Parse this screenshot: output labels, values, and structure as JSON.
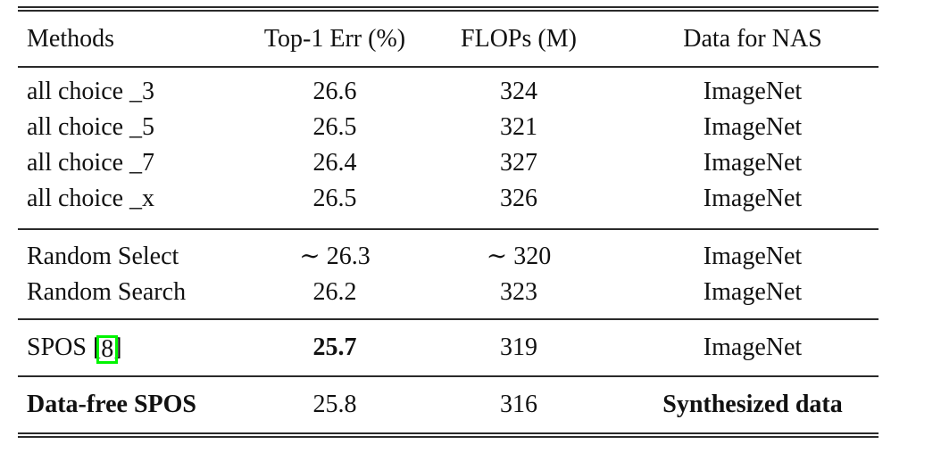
{
  "colors": {
    "text": "#111111",
    "rule": "#2a2a2a",
    "citation_box": "#00f400",
    "background": "#ffffff"
  },
  "table": {
    "columns": [
      "Methods",
      "Top-1 Err (%)",
      "FLOPs (M)",
      "Data for NAS"
    ],
    "groups": [
      {
        "rows": [
          {
            "method": "all choice _3",
            "err": "26.6",
            "flops": "324",
            "data": "ImageNet"
          },
          {
            "method": "all choice _5",
            "err": "26.5",
            "flops": "321",
            "data": "ImageNet"
          },
          {
            "method": "all choice _7",
            "err": "26.4",
            "flops": "327",
            "data": "ImageNet"
          },
          {
            "method": "all choice _x",
            "err": "26.5",
            "flops": "326",
            "data": "ImageNet"
          }
        ]
      },
      {
        "rows": [
          {
            "method": "Random Select",
            "err": "∼ 26.3",
            "flops": "∼ 320",
            "data": "ImageNet"
          },
          {
            "method": "Random Search",
            "err": "26.2",
            "flops": "323",
            "data": "ImageNet"
          }
        ]
      },
      {
        "rows": [
          {
            "method": "SPOS",
            "cite_open": "[",
            "cite": "8",
            "cite_close": "]",
            "err": "25.7",
            "flops": "319",
            "data": "ImageNet"
          }
        ]
      },
      {
        "rows": [
          {
            "method": "Data-free SPOS",
            "err": "25.8",
            "flops": "316",
            "data": "Synthesized data"
          }
        ]
      }
    ]
  }
}
